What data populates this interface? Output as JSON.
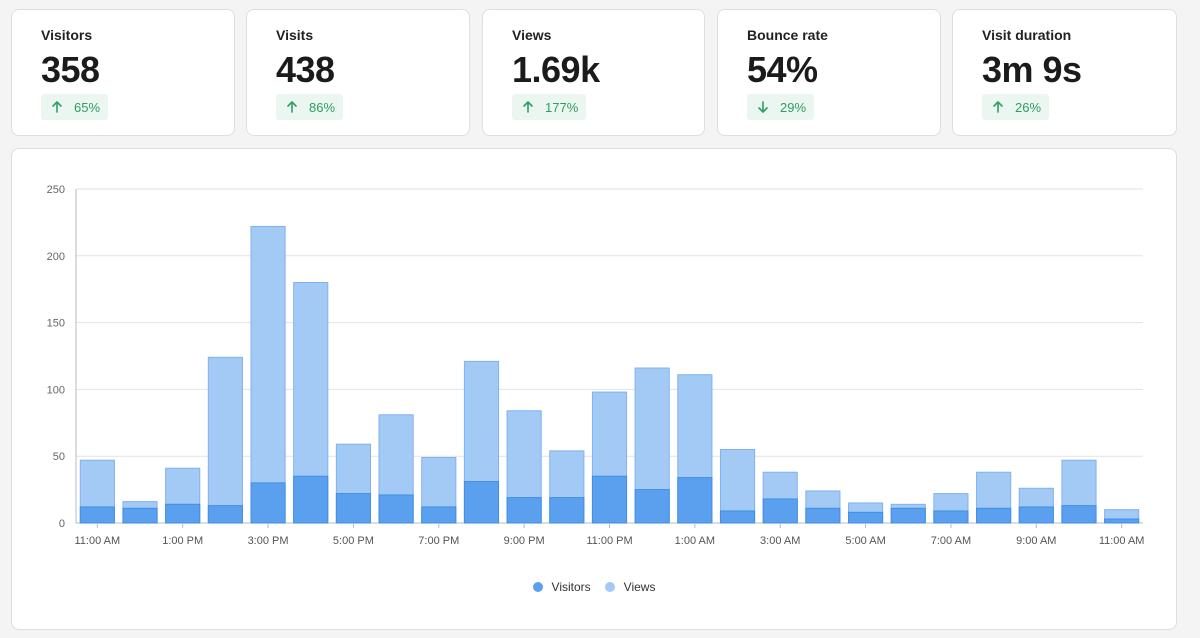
{
  "metrics": [
    {
      "label": "Visitors",
      "value": "358",
      "change": "65%",
      "direction": "up"
    },
    {
      "label": "Visits",
      "value": "438",
      "change": "86%",
      "direction": "up"
    },
    {
      "label": "Views",
      "value": "1.69k",
      "change": "177%",
      "direction": "up"
    },
    {
      "label": "Bounce rate",
      "value": "54%",
      "change": "29%",
      "direction": "down"
    },
    {
      "label": "Visit duration",
      "value": "3m 9s",
      "change": "26%",
      "direction": "up"
    }
  ],
  "colors": {
    "visitors": "#5ba0ee",
    "views": "#a3c9f5",
    "positive": "#2f9e63",
    "positive_bg": "#eaf6ef"
  },
  "chart_data": {
    "type": "bar",
    "stacked": true,
    "y_ticks": [
      "0",
      "50",
      "100",
      "150",
      "200",
      "250"
    ],
    "ylim": [
      0,
      250
    ],
    "x_tick_labels": [
      "11:00 AM",
      "1:00 PM",
      "3:00 PM",
      "5:00 PM",
      "7:00 PM",
      "9:00 PM",
      "11:00 PM",
      "1:00 AM",
      "3:00 AM",
      "5:00 AM",
      "7:00 AM",
      "9:00 AM",
      "11:00 AM"
    ],
    "series": [
      {
        "name": "Visitors",
        "values": [
          12,
          11,
          14,
          13,
          30,
          35,
          22,
          21,
          12,
          31,
          19,
          19,
          35,
          25,
          34,
          9,
          18,
          11,
          8,
          11,
          9,
          11,
          12,
          13,
          3
        ]
      },
      {
        "name": "Views",
        "values": [
          47,
          16,
          41,
          124,
          222,
          180,
          59,
          81,
          49,
          121,
          84,
          54,
          98,
          116,
          111,
          55,
          38,
          24,
          15,
          14,
          22,
          38,
          26,
          47,
          10
        ]
      }
    ],
    "grid": true,
    "legend": "bottom-center"
  }
}
